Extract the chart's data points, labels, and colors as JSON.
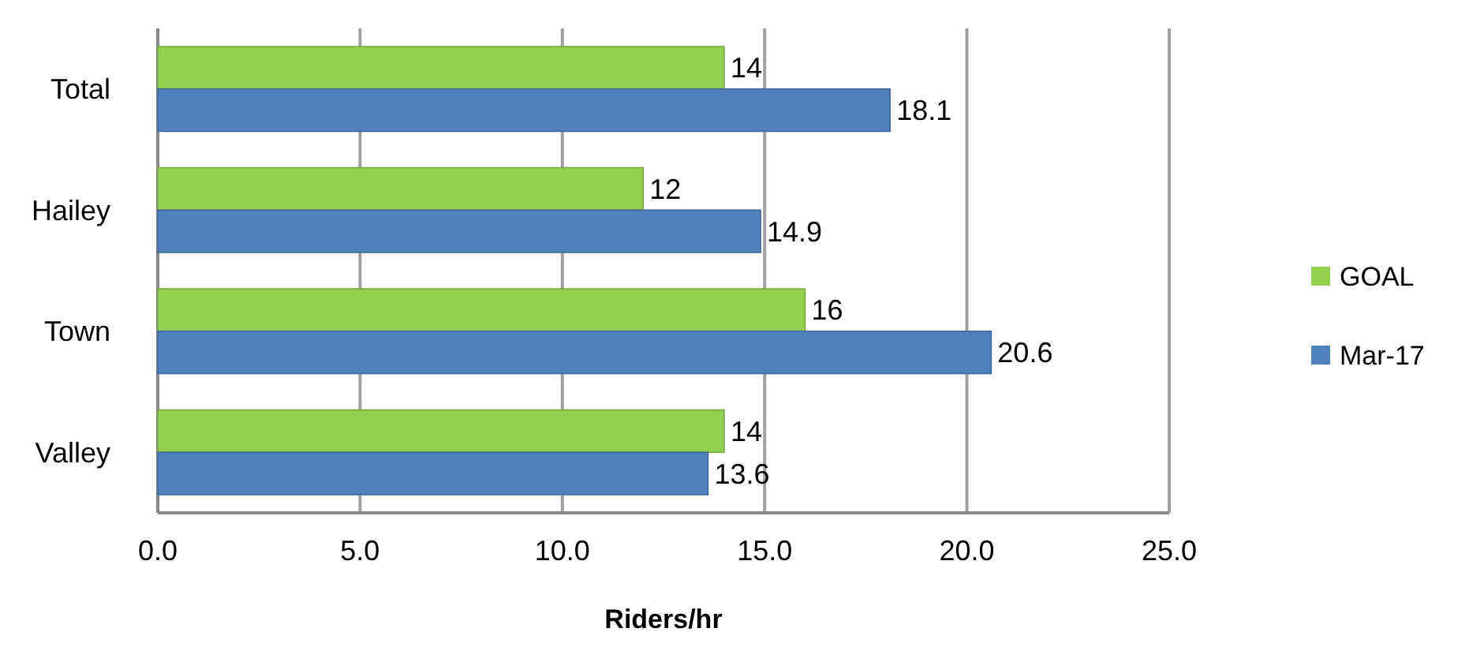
{
  "chart_data": {
    "type": "bar",
    "orientation": "horizontal",
    "xlabel": "Riders/hr",
    "categories": [
      "Total",
      "Hailey",
      "Town",
      "Valley"
    ],
    "series": [
      {
        "name": "GOAL",
        "color": "#92d050",
        "values": [
          14,
          12,
          16,
          14
        ]
      },
      {
        "name": "Mar-17",
        "color": "#4f81bd",
        "values": [
          18.1,
          14.9,
          20.6,
          13.6
        ]
      }
    ],
    "xlim": [
      0,
      25
    ],
    "xticks": [
      {
        "value": 0,
        "label": "0.0"
      },
      {
        "value": 5,
        "label": "5.0"
      },
      {
        "value": 10,
        "label": "10.0"
      },
      {
        "value": 15,
        "label": "15.0"
      },
      {
        "value": 20,
        "label": "20.0"
      },
      {
        "value": 25,
        "label": "25.0"
      }
    ],
    "grid": "x",
    "legend": "right",
    "data_labels": true
  }
}
